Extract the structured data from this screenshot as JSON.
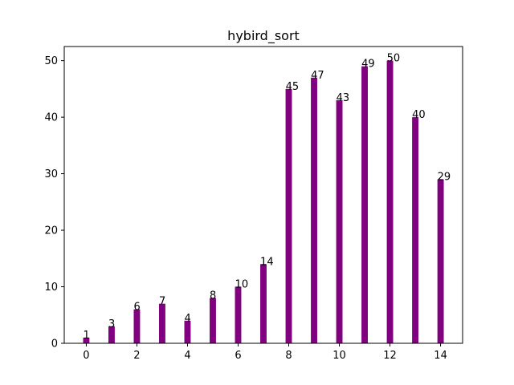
{
  "chart_data": {
    "type": "bar",
    "title": "hybird_sort",
    "xlabel": "",
    "ylabel": "",
    "x": [
      0,
      1,
      2,
      3,
      4,
      5,
      6,
      7,
      8,
      9,
      10,
      11,
      12,
      13,
      14
    ],
    "values": [
      1,
      3,
      6,
      7,
      4,
      8,
      10,
      14,
      45,
      47,
      43,
      49,
      50,
      40,
      29
    ],
    "data_labels": [
      "1",
      "3",
      "6",
      "7",
      "4",
      "8",
      "10",
      "14",
      "45",
      "47",
      "43",
      "49",
      "50",
      "40",
      "29"
    ],
    "xticks": [
      0,
      2,
      4,
      6,
      8,
      10,
      12,
      14
    ],
    "xtick_labels": [
      "0",
      "2",
      "4",
      "6",
      "8",
      "10",
      "12",
      "14"
    ],
    "yticks": [
      0,
      10,
      20,
      30,
      40,
      50
    ],
    "ytick_labels": [
      "0",
      "10",
      "20",
      "30",
      "40",
      "50"
    ],
    "xlim": [
      -0.87,
      14.87
    ],
    "ylim": [
      0,
      52.5
    ],
    "bar_color": "#800080",
    "grid": false,
    "legend": "none"
  }
}
